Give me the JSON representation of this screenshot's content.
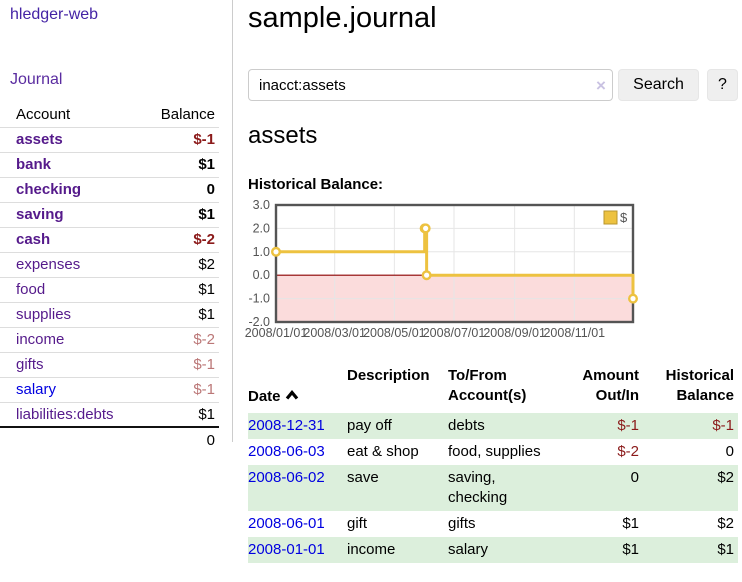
{
  "colors": {
    "link_purple": "#551a8b",
    "link_blue": "#0000e0",
    "nav_purple": "#4423a5",
    "negative_dark": "#8b1a1a",
    "negative_light": "#bb7777",
    "row_stripe_green": "#dcefdc",
    "chart_line_gold": "#edc240",
    "chart_negative_region": "#fbdcdc",
    "chart_zero_line": "#8b0000",
    "chart_border": "#545454",
    "grid": "#e6e6e6"
  },
  "sidebar": {
    "brand": "hledger-web",
    "journal_link": "Journal",
    "accounts": {
      "header_account": "Account",
      "header_balance": "Balance",
      "rows": [
        {
          "name": "assets",
          "balance": "$-1",
          "level": 1,
          "strong": true,
          "neg": "dark"
        },
        {
          "name": "bank",
          "balance": "$1",
          "level": 2,
          "strong": true
        },
        {
          "name": "checking",
          "balance": "0",
          "level": 3,
          "strong": true
        },
        {
          "name": "saving",
          "balance": "$1",
          "level": 3,
          "strong": true
        },
        {
          "name": "cash",
          "balance": "$-2",
          "level": 2,
          "strong": true,
          "neg": "dark"
        },
        {
          "name": "expenses",
          "balance": "$2",
          "level": 1
        },
        {
          "name": "food",
          "balance": "$1",
          "level": 2
        },
        {
          "name": "supplies",
          "balance": "$1",
          "level": 2
        },
        {
          "name": "income",
          "balance": "$-2",
          "level": 1,
          "neg": "light"
        },
        {
          "name": "gifts",
          "balance": "$-1",
          "level": 2,
          "neg": "light"
        },
        {
          "name": "salary",
          "balance": "$-1",
          "level": 2,
          "neg": "light",
          "unvisited": true
        },
        {
          "name": "liabilities:debts",
          "balance": "$1",
          "level": 1
        }
      ],
      "total": "0"
    }
  },
  "main": {
    "title": "sample.journal",
    "search": {
      "value": "inacct:assets",
      "clear_icon": "×",
      "search_button": "Search",
      "help_button": "?"
    },
    "heading": "assets",
    "chart_title": "Historical Balance:"
  },
  "chart_data": {
    "type": "line",
    "step": true,
    "title": "Historical Balance",
    "xlabel": "",
    "ylabel": "",
    "ylim": [
      -2,
      3
    ],
    "xlim": [
      "2008-01-01",
      "2008-12-31"
    ],
    "grid": true,
    "legend_position": "top-right",
    "legend": [
      {
        "label": "$",
        "color": "#edc240"
      }
    ],
    "yticks": [
      "3.0",
      "2.0",
      "1.0",
      "0.0",
      "-1.0",
      "-2.0"
    ],
    "xticks": [
      "2008/01/01",
      "2008/03/01",
      "2008/05/01",
      "2008/07/01",
      "2008/09/01",
      "2008/11/01"
    ],
    "series": [
      {
        "name": "$",
        "points": [
          [
            "2008-01-01",
            1
          ],
          [
            "2008-06-01",
            2
          ],
          [
            "2008-06-02",
            2
          ],
          [
            "2008-06-03",
            0
          ],
          [
            "2008-12-31",
            -1
          ]
        ]
      }
    ]
  },
  "register": {
    "headers": {
      "date": "Date",
      "description": "Description",
      "accounts": "To/From\nAccount(s)",
      "amount": "Amount\nOut/In",
      "balance": "Historical\nBalance"
    },
    "rows": [
      {
        "date": "2008-12-31",
        "description": "pay off",
        "accounts": "debts",
        "amount": "$-1",
        "balance": "$-1",
        "amount_neg": true,
        "balance_neg": true
      },
      {
        "date": "2008-06-03",
        "description": "eat & shop",
        "accounts": "food, supplies",
        "amount": "$-2",
        "balance": "0",
        "amount_neg": true
      },
      {
        "date": "2008-06-02",
        "description": "save",
        "accounts": "saving,\nchecking",
        "amount": "0",
        "balance": "$2"
      },
      {
        "date": "2008-06-01",
        "description": "gift",
        "accounts": "gifts",
        "amount": "$1",
        "balance": "$2"
      },
      {
        "date": "2008-01-01",
        "description": "income",
        "accounts": "salary",
        "amount": "$1",
        "balance": "$1"
      }
    ]
  }
}
